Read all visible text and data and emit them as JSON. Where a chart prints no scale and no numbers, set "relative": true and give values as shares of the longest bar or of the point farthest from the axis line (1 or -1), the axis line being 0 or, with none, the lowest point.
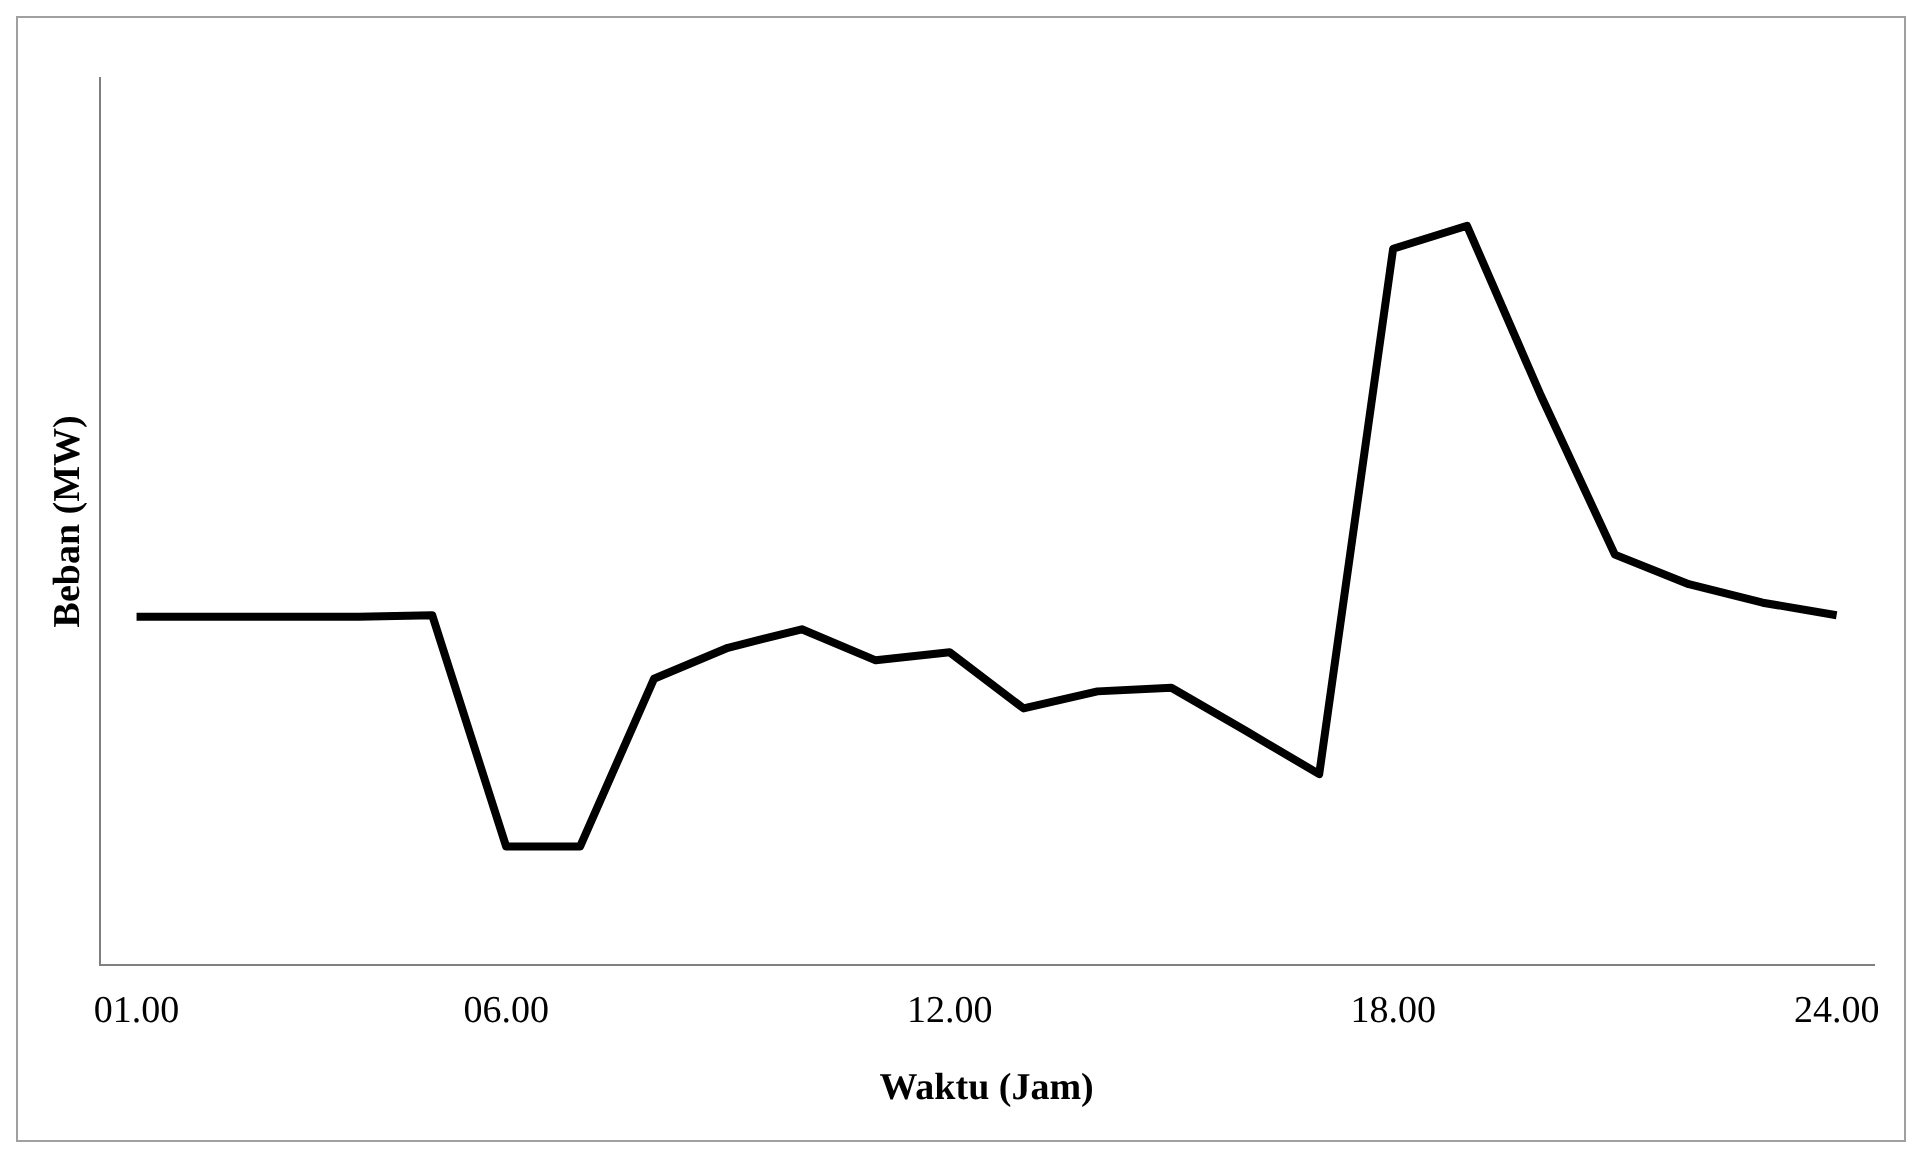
{
  "chart_data": {
    "type": "line",
    "xlabel": "Waktu (Jam)",
    "ylabel": "Beban (MW)",
    "relative": true,
    "categories": [
      "01.00",
      null,
      null,
      null,
      null,
      "06.00",
      null,
      null,
      null,
      null,
      null,
      "12.00",
      null,
      null,
      null,
      null,
      null,
      "18.00",
      null,
      null,
      null,
      null,
      null,
      "24.00"
    ],
    "series": [
      {
        "color": "#000000",
        "values": [
          0.471,
          0.471,
          0.471,
          0.471,
          0.473,
          0.16,
          0.16,
          0.387,
          0.429,
          0.454,
          0.412,
          0.423,
          0.347,
          0.37,
          0.375,
          0.317,
          0.258,
          0.969,
          1,
          0.77,
          0.555,
          0.515,
          0.49,
          0.473
        ]
      }
    ],
    "grid": false,
    "legend": false,
    "marker": "none",
    "line_style": "solid"
  }
}
